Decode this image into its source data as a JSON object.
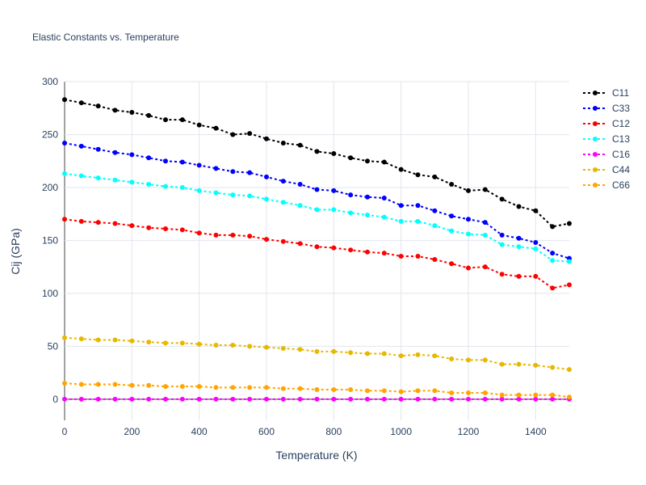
{
  "chart_data": {
    "type": "line",
    "title": "Elastic Constants vs. Temperature",
    "xlabel": "Temperature (K)",
    "ylabel": "Cij (GPa)",
    "xlim": [
      0,
      1500
    ],
    "ylim": [
      -20,
      300
    ],
    "xticks": [
      0,
      200,
      400,
      600,
      800,
      1000,
      1200,
      1400
    ],
    "yticks": [
      0,
      50,
      100,
      150,
      200,
      250,
      300
    ],
    "grid": true,
    "legend_position": "top-right",
    "x": [
      0,
      50,
      100,
      150,
      200,
      250,
      300,
      350,
      400,
      450,
      500,
      550,
      600,
      650,
      700,
      750,
      800,
      850,
      900,
      950,
      1000,
      1050,
      1100,
      1150,
      1200,
      1250,
      1300,
      1350,
      1400,
      1450,
      1500
    ],
    "series": [
      {
        "name": "C11",
        "color": "#000000",
        "values": [
          283,
          280,
          277,
          273,
          271,
          268,
          264,
          264,
          259,
          256,
          250,
          251,
          246,
          242,
          240,
          234,
          232,
          228,
          225,
          224,
          217,
          212,
          210,
          203,
          197,
          198,
          189,
          182,
          178,
          163,
          166
        ]
      },
      {
        "name": "C33",
        "color": "#0000ff",
        "values": [
          242,
          239,
          236,
          233,
          231,
          228,
          225,
          224,
          221,
          218,
          215,
          214,
          210,
          206,
          203,
          198,
          197,
          193,
          191,
          190,
          183,
          183,
          178,
          173,
          170,
          167,
          155,
          152,
          148,
          138,
          133
        ]
      },
      {
        "name": "C12",
        "color": "#ff0000",
        "values": [
          170,
          168,
          167,
          166,
          164,
          162,
          161,
          160,
          157,
          155,
          155,
          154,
          151,
          149,
          147,
          144,
          143,
          141,
          139,
          138,
          135,
          135,
          132,
          128,
          124,
          125,
          118,
          116,
          116,
          105,
          108
        ]
      },
      {
        "name": "C13",
        "color": "#00ffff",
        "values": [
          213,
          211,
          209,
          207,
          205,
          203,
          201,
          200,
          197,
          195,
          193,
          192,
          189,
          186,
          183,
          179,
          179,
          176,
          174,
          172,
          168,
          168,
          164,
          159,
          156,
          155,
          146,
          144,
          142,
          131,
          130
        ]
      },
      {
        "name": "C16",
        "color": "#ff00ff",
        "values": [
          0,
          0,
          0,
          0,
          0,
          0,
          0,
          0,
          0,
          0,
          0,
          0,
          0,
          0,
          0,
          0,
          0,
          0,
          0,
          0,
          0,
          0,
          0,
          0,
          0,
          0,
          0,
          0,
          0,
          0,
          0
        ]
      },
      {
        "name": "C44",
        "color": "#e6b800",
        "values": [
          58,
          57,
          56,
          56,
          55,
          54,
          53,
          53,
          52,
          51,
          51,
          50,
          49,
          48,
          47,
          45,
          45,
          44,
          43,
          43,
          41,
          42,
          41,
          38,
          37,
          37,
          33,
          33,
          32,
          30,
          28
        ]
      },
      {
        "name": "C66",
        "color": "#ffa500",
        "values": [
          15,
          14,
          14,
          14,
          13,
          13,
          12,
          12,
          12,
          11,
          11,
          11,
          11,
          10,
          10,
          9,
          9,
          9,
          8,
          8,
          7,
          8,
          8,
          6,
          6,
          6,
          4,
          4,
          4,
          4,
          2
        ]
      }
    ]
  }
}
